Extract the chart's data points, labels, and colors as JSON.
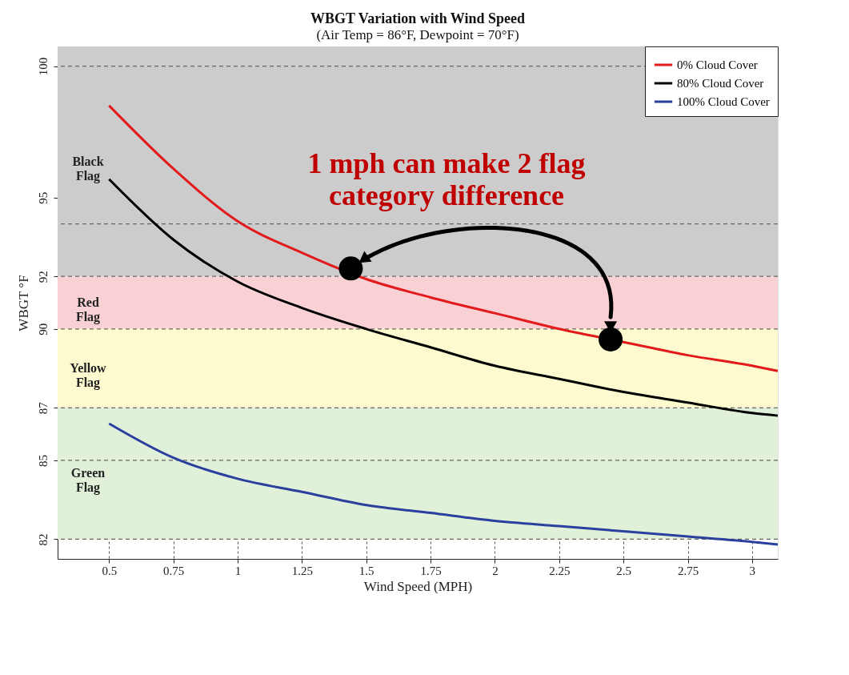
{
  "chart_data": {
    "type": "line",
    "title": "WBGT Variation with Wind Speed",
    "subtitle": "(Air Temp = 86°F, Dewpoint = 70°F)",
    "xlabel": "Wind Speed (MPH)",
    "ylabel": "WBGT °F",
    "x": [
      0.5,
      0.75,
      1,
      1.25,
      1.5,
      1.75,
      2,
      2.25,
      2.5,
      2.75,
      3,
      3.1
    ],
    "series": [
      {
        "name": "0% Cloud Cover",
        "color": "#e31a1c",
        "values": [
          98.5,
          96.1,
          94.1,
          92.9,
          91.9,
          91.2,
          90.6,
          90.0,
          89.5,
          89.0,
          88.6,
          88.4
        ]
      },
      {
        "name": "80% Cloud Cover",
        "color": "#000000",
        "values": [
          95.7,
          93.4,
          91.8,
          90.8,
          90.0,
          89.3,
          88.6,
          88.1,
          87.6,
          87.2,
          86.8,
          86.7
        ]
      },
      {
        "name": "100% Cloud Cover",
        "color": "#2a3f9e",
        "values": [
          86.4,
          85.1,
          84.3,
          83.8,
          83.3,
          83.0,
          82.7,
          82.5,
          82.3,
          82.1,
          81.9,
          81.8
        ]
      },
      {
        "type": "scatter",
        "color": "#000000",
        "x": [
          1.44,
          2.45
        ],
        "values": [
          92.3,
          89.6
        ]
      }
    ],
    "xlim": [
      0.3,
      3.1
    ],
    "ylim": [
      81.25,
      100.75
    ],
    "xticks": [
      0.5,
      0.75,
      1,
      1.25,
      1.5,
      1.75,
      2,
      2.25,
      2.5,
      2.75,
      3
    ],
    "yticks": [
      82,
      85,
      87,
      90,
      92,
      95,
      100
    ],
    "grid": "x",
    "legend": "top right",
    "line_style": "solid",
    "bands": [
      {
        "axis": "y",
        "from": 92,
        "to": 100.75,
        "label": "Black Flag",
        "color": "#cccccc"
      },
      {
        "axis": "y",
        "from": 90,
        "to": 92,
        "label": "Red Flag",
        "color": "#f9d1d4"
      },
      {
        "axis": "y",
        "from": 87,
        "to": 90,
        "label": "Yellow Flag",
        "color": "#fdfacf"
      },
      {
        "axis": "y",
        "from": 82,
        "to": 87,
        "label": "Green Flag",
        "color": "#e1f0d9"
      }
    ],
    "ref_lines": [
      {
        "axis": "y",
        "value": 100,
        "color": "#666666",
        "line_style": "dashed"
      },
      {
        "axis": "y",
        "value": 94,
        "color": "#666666",
        "line_style": "dashed"
      },
      {
        "axis": "y",
        "value": 92,
        "color": "#666666",
        "line_style": "dashed"
      },
      {
        "axis": "y",
        "value": 90,
        "color": "#666666",
        "line_style": "dashed"
      },
      {
        "axis": "y",
        "value": 87,
        "color": "#666666",
        "line_style": "dashed"
      },
      {
        "axis": "y",
        "value": 85,
        "color": "#666666",
        "line_style": "dashed"
      },
      {
        "axis": "y",
        "value": 82,
        "color": "#666666",
        "line_style": "dashed"
      }
    ],
    "annotations": [
      "1 mph can make 2 flag\ncategory difference"
    ]
  }
}
